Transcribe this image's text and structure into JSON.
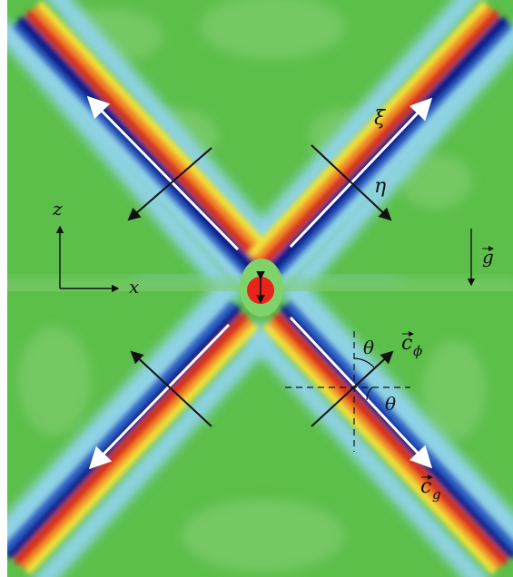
{
  "colors": {
    "background": "#5cbf4a",
    "background_light": "#7fcd6e",
    "light_blue": "#8fd3e6",
    "mid_blue": "#2f63c8",
    "dark_blue": "#0b1f8a",
    "yellow": "#f2e33a",
    "orange": "#f38b2a",
    "red": "#d92a1e",
    "white_arrow": "#ffffff",
    "black_arrow": "#111111",
    "source_ring": "#7fd36a",
    "source_core": "#e8231a"
  },
  "labels": {
    "xi": "ξ",
    "eta": "η",
    "z": "z",
    "x": "x",
    "g": "g",
    "c_phi_base": "c",
    "c_phi_sub": "ϕ",
    "c_g_base": "c",
    "c_g_sub": "g",
    "theta_1": "θ",
    "theta_2": "θ"
  },
  "icons": {
    "source": "oscillating-source-icon",
    "vector_arrow": "vector-arrow-icon"
  }
}
